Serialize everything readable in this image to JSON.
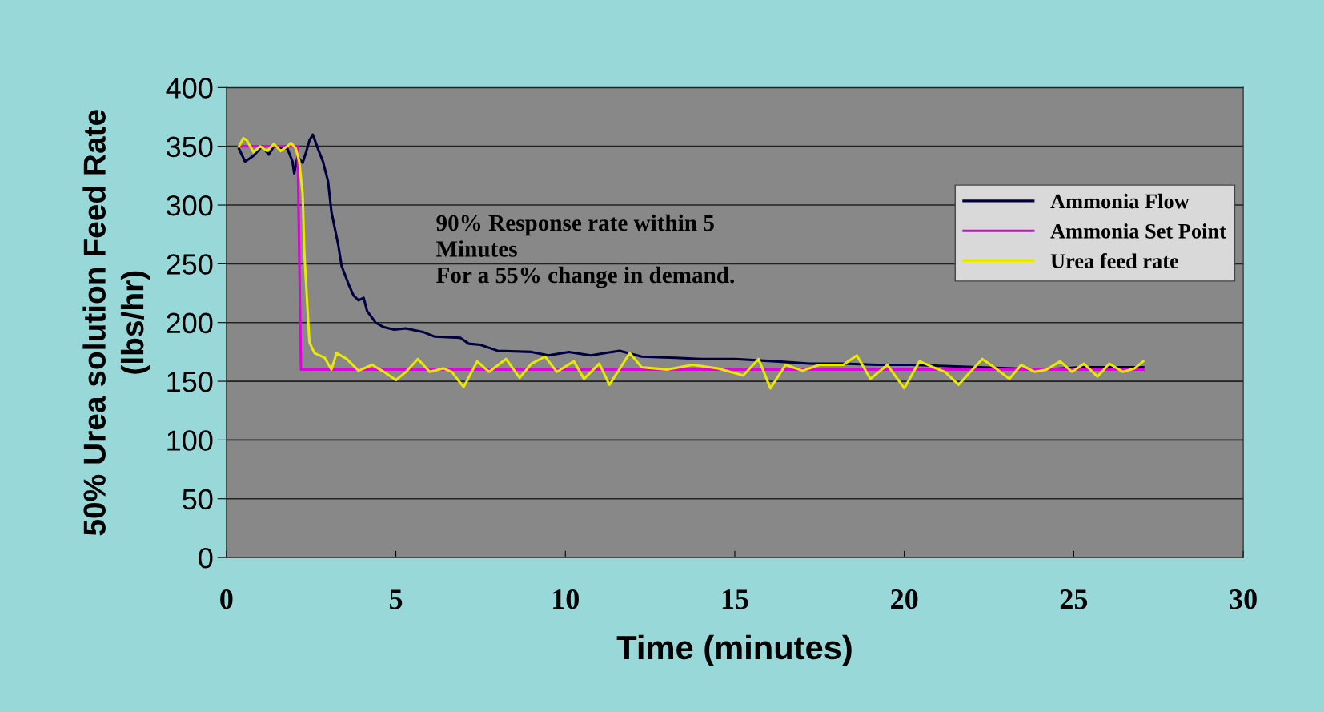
{
  "chart_data": {
    "type": "line",
    "xlabel": "Time (minutes)",
    "ylabel": "50% Urea solution Feed Rate\n(lbs/hr)",
    "xlim": [
      0,
      30
    ],
    "xticks": [
      0,
      5,
      10,
      15,
      20,
      25,
      30
    ],
    "ylim": [
      0,
      400
    ],
    "yticks": [
      0,
      50,
      100,
      150,
      200,
      250,
      300,
      350,
      400
    ],
    "grid": "y",
    "legend": "top right",
    "marker": "none",
    "line_style": "solid",
    "annotations": [
      "90% Response rate within 5\nMinutes\nFor a 55% change in demand."
    ],
    "series": [
      {
        "name": "Ammonia Flow",
        "color": "#000040",
        "x": [
          0.37,
          0.55,
          0.8,
          1.05,
          1.25,
          1.4,
          1.8,
          1.95,
          2.0,
          2.1,
          2.25,
          2.35,
          2.45,
          2.55,
          2.7,
          2.85,
          3.0,
          3.1,
          3.3,
          3.4,
          3.6,
          3.75,
          3.9,
          4.05,
          4.15,
          4.4,
          4.65,
          4.95,
          5.3,
          5.8,
          6.15,
          6.9,
          7.15,
          7.5,
          8.0,
          9.0,
          9.5,
          10.1,
          10.75,
          11.6,
          12.25,
          13.25,
          14,
          15,
          16.2,
          17.2,
          18.2,
          19.2,
          20.2,
          21.2,
          22.2,
          23.2,
          24.2,
          25.2,
          26.2,
          27.05
        ],
        "values": [
          348,
          337,
          342,
          350,
          343,
          350,
          348,
          337,
          327,
          341,
          336,
          345,
          355,
          360,
          348,
          337,
          320,
          294,
          266,
          248,
          233,
          223,
          219,
          221,
          210,
          200,
          196,
          194,
          195,
          192,
          188,
          187,
          182,
          181,
          176,
          175,
          172,
          175,
          172,
          176,
          171,
          170,
          169,
          169,
          167,
          165,
          165,
          164,
          164,
          163,
          162,
          161,
          160,
          162,
          162,
          162
        ]
      },
      {
        "name": "Ammonia Set Point",
        "color": "#e000e0",
        "x": [
          0.37,
          2.1,
          2.2,
          27.05
        ],
        "values": [
          350,
          350,
          160,
          160
        ]
      },
      {
        "name": "Urea feed rate",
        "color": "#e8e800",
        "x": [
          0.37,
          0.5,
          0.6,
          0.8,
          1.0,
          1.2,
          1.4,
          1.6,
          1.8,
          1.9,
          2.05,
          2.15,
          2.25,
          2.3,
          2.4,
          2.45,
          2.6,
          2.9,
          3.1,
          3.25,
          3.55,
          3.9,
          4.3,
          4.65,
          5.0,
          5.3,
          5.65,
          6.0,
          6.4,
          6.65,
          7.0,
          7.4,
          7.75,
          8.25,
          8.65,
          9.0,
          9.4,
          9.75,
          10.25,
          10.55,
          11.0,
          11.3,
          11.9,
          12.25,
          13.0,
          13.75,
          14.5,
          15.25,
          15.7,
          16.05,
          16.5,
          17.0,
          17.5,
          18.2,
          18.6,
          19.0,
          19.5,
          20.0,
          20.45,
          20.85,
          21.2,
          21.6,
          21.95,
          22.3,
          22.7,
          23.1,
          23.45,
          23.85,
          24.2,
          24.6,
          24.95,
          25.3,
          25.7,
          26.05,
          26.45,
          26.8,
          27.05
        ],
        "values": [
          350,
          357,
          355,
          345,
          350,
          346,
          352,
          346,
          350,
          353,
          348,
          337,
          309,
          259,
          208,
          183,
          174,
          170,
          160,
          174,
          169,
          159,
          164,
          158,
          151,
          158,
          169,
          158,
          161,
          158,
          145,
          167,
          158,
          169,
          153,
          165,
          171,
          158,
          167,
          152,
          165,
          147,
          174,
          162,
          160,
          164,
          161,
          155,
          169,
          144,
          164,
          159,
          164,
          164,
          172,
          152,
          164,
          144,
          167,
          162,
          158,
          147,
          158,
          169,
          161,
          152,
          164,
          158,
          160,
          167,
          158,
          165,
          154,
          165,
          158,
          161,
          167
        ]
      }
    ]
  }
}
